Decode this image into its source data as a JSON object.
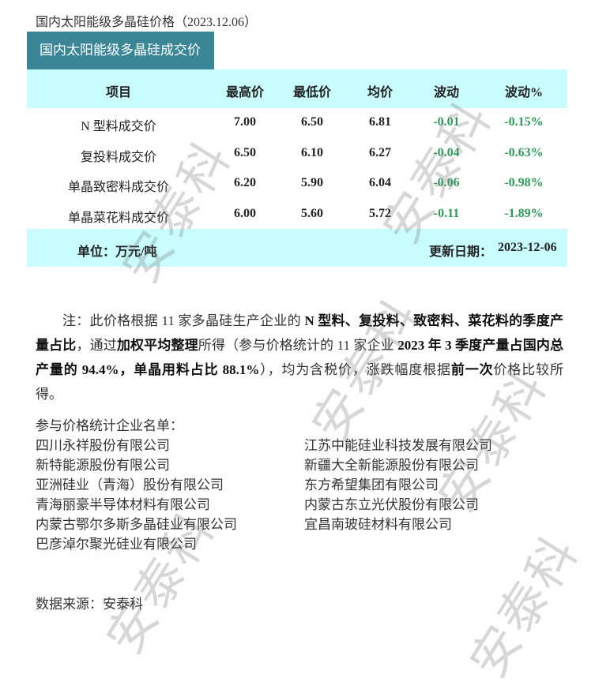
{
  "title": "国内太阳能级多晶硅价格（2023.12.06）",
  "table": {
    "caption": "国内太阳能级多晶硅成交价",
    "headers": [
      "项目",
      "最高价",
      "最低价",
      "均价",
      "波动",
      "波动%"
    ],
    "rows": [
      {
        "item": "N 型料成交价",
        "high": "7.00",
        "low": "6.50",
        "avg": "6.81",
        "change": "-0.01",
        "change_pct": "-0.15%"
      },
      {
        "item": "复投料成交价",
        "high": "6.50",
        "low": "6.10",
        "avg": "6.27",
        "change": "-0.04",
        "change_pct": "-0.63%"
      },
      {
        "item": "单晶致密料成交价",
        "high": "6.20",
        "low": "5.90",
        "avg": "6.04",
        "change": "-0.06",
        "change_pct": "-0.98%"
      },
      {
        "item": "单晶菜花料成交价",
        "high": "6.00",
        "low": "5.60",
        "avg": "5.72",
        "change": "-0.11",
        "change_pct": "-1.89%"
      }
    ],
    "unit": "单位：万元/吨",
    "update_label": "更新日期：",
    "update_date": "2023-12-06"
  },
  "note": {
    "segments": [
      {
        "text": "注：此价格根据 11 家多晶硅生产企业的 ",
        "bold": false
      },
      {
        "text": "N 型料、复投料、致密料、菜花料的季度产量占比",
        "bold": true
      },
      {
        "text": "，通过",
        "bold": false
      },
      {
        "text": "加权平均整理",
        "bold": true
      },
      {
        "text": "所得（参与价格统计的 11 家企业 ",
        "bold": false
      },
      {
        "text": "2023 年 3 季度产量占国内总产量的 94.4%，单晶用料占比 88.1%",
        "bold": true
      },
      {
        "text": "），均为含税价，涨跌幅度根据",
        "bold": false
      },
      {
        "text": "前一次",
        "bold": true
      },
      {
        "text": "价格比较所得。",
        "bold": false
      }
    ]
  },
  "companies": {
    "heading": "参与价格统计企业名单：",
    "left": [
      "四川永祥股份有限公司",
      "新特能源股份有限公司",
      "亚洲硅业（青海）股份有限公司",
      "青海丽豪半导体材料有限公司",
      "内蒙古鄂尔多斯多晶硅业有限公司",
      "巴彦淖尔聚光硅业有限公司"
    ],
    "right": [
      "江苏中能硅业科技发展有限公司",
      "新疆大全新能源股份有限公司",
      "东方希望集团有限公司",
      "内蒙古东立光伏股份有限公司",
      "宜昌南玻硅材料有限公司"
    ]
  },
  "source": "数据来源：安泰科",
  "watermark": "安泰科",
  "colors": {
    "header_bg": "#3a8596",
    "band_bg": "#c8fcfd",
    "negative_change": "#2e9a5a"
  }
}
